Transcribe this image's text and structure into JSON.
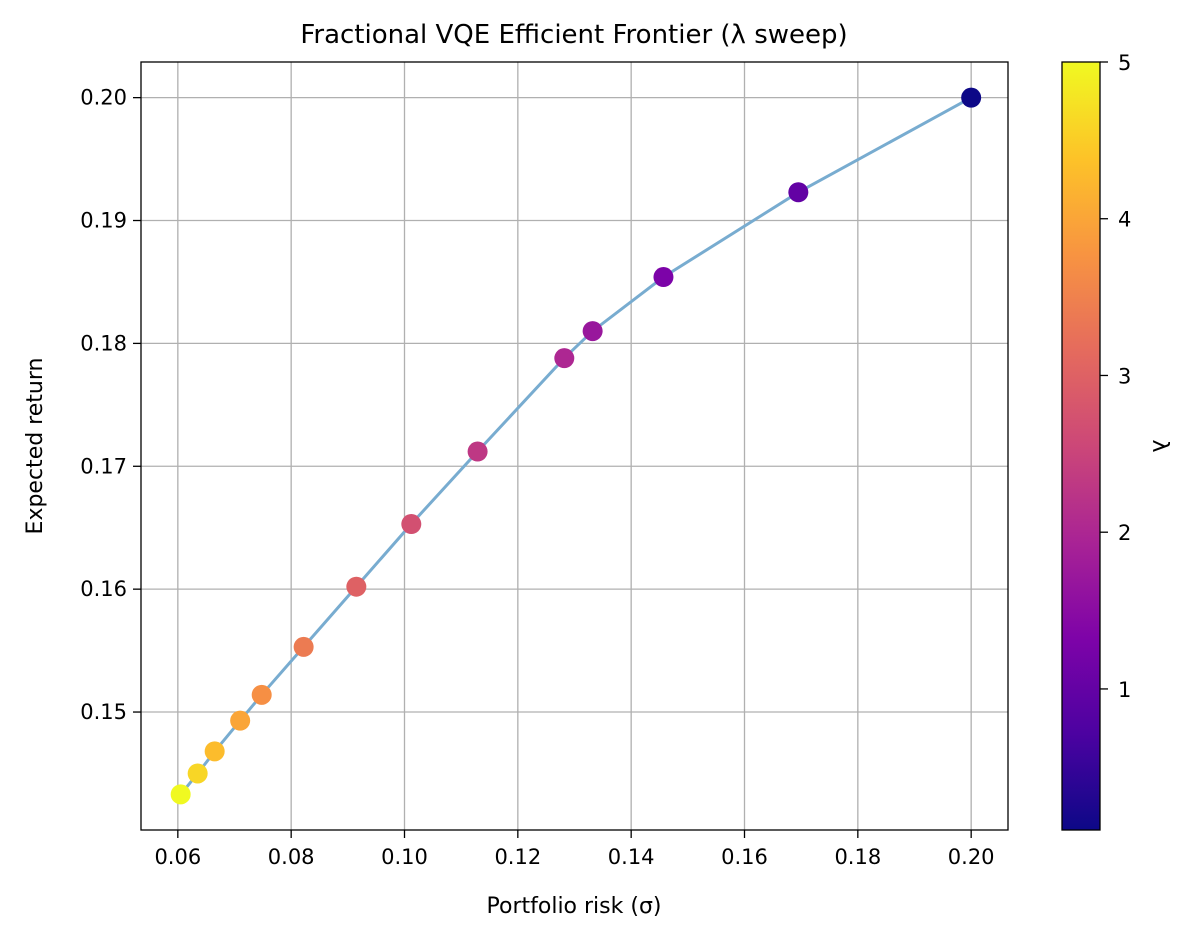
{
  "chart_data": {
    "type": "scatter",
    "title": "Fractional VQE Efficient Frontier (λ sweep)",
    "xlabel": "Portfolio risk (σ)",
    "ylabel": "Expected return",
    "colorbar_label": "λ",
    "colormap": "plasma",
    "xlim": [
      0.0535,
      0.2065
    ],
    "ylim": [
      0.1404,
      0.2029
    ],
    "x_ticks": [
      0.06,
      0.08,
      0.1,
      0.12,
      0.14,
      0.16,
      0.18,
      0.2
    ],
    "x_tick_labels": [
      "0.06",
      "0.08",
      "0.10",
      "0.12",
      "0.14",
      "0.16",
      "0.18",
      "0.20"
    ],
    "y_ticks": [
      0.15,
      0.16,
      0.17,
      0.18,
      0.19,
      0.2
    ],
    "y_tick_labels": [
      "0.15",
      "0.16",
      "0.17",
      "0.18",
      "0.19",
      "0.20"
    ],
    "colorbar_range": [
      0.1,
      5
    ],
    "colorbar_ticks": [
      1,
      2,
      3,
      4,
      5
    ],
    "colorbar_tick_labels": [
      "1",
      "2",
      "3",
      "4",
      "5"
    ],
    "grid": true,
    "line_color": "#78acd0",
    "series": [
      {
        "x": [
          0.0605,
          0.0635,
          0.0665,
          0.071,
          0.0748,
          0.0822,
          0.0915,
          0.1012,
          0.1129,
          0.1282,
          0.1332,
          0.1457,
          0.1695,
          0.2
        ],
        "y": [
          0.1433,
          0.145,
          0.1468,
          0.1493,
          0.1514,
          0.1553,
          0.1602,
          0.1653,
          0.1712,
          0.1788,
          0.181,
          0.1854,
          0.1923,
          0.2
        ],
        "lambda": [
          5.0,
          4.6,
          4.3,
          4.0,
          3.7,
          3.4,
          3.0,
          2.7,
          2.3,
          2.0,
          1.7,
          1.3,
          1.0,
          0.1
        ]
      }
    ]
  }
}
